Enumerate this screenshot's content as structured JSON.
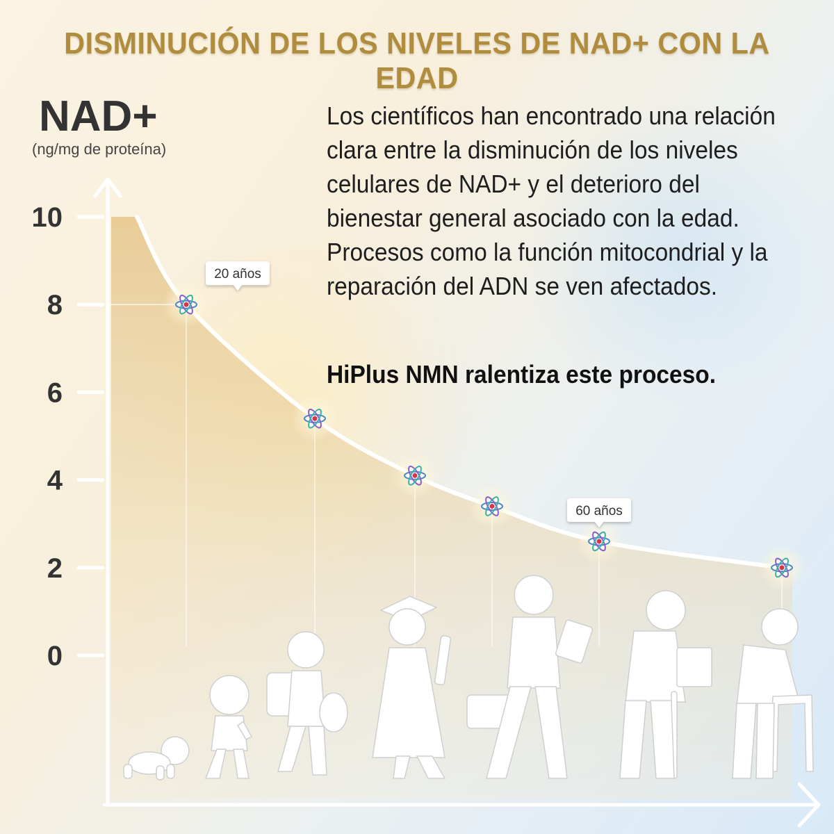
{
  "title": "DISMINUCIÓN DE LOS NIVELES DE NAD+ CON LA EDAD",
  "description": "Los científicos han encontrado una relación clara entre la disminución de los niveles celulares de NAD+ y el deterioro del bienestar general asociado con la edad. Procesos como la función mitocondrial y la reparación del ADN se ven afectados.",
  "highlight": "HiPlus NMN ralentiza este proceso.",
  "colors": {
    "title": "#b08d3e",
    "fill": "#e6c98f",
    "curve": "#ffffff"
  },
  "icons": [
    "atom-icon",
    "crawling-baby-icon",
    "toddler-icon",
    "child-with-backpack-icon",
    "graduate-icon",
    "businessman-icon",
    "elderly-man-with-cane-icon",
    "elderly-man-with-walker-icon"
  ],
  "chart_data": {
    "type": "area",
    "ylabel": "NAD+",
    "yunit": "(ng/mg de proteína)",
    "ylim": [
      0,
      10
    ],
    "yticks": [
      0,
      2,
      4,
      6,
      8,
      10
    ],
    "grid": false,
    "series": [
      {
        "values": [
          10,
          8.0,
          5.4,
          4.1,
          3.4,
          2.6,
          2.0
        ]
      }
    ],
    "annotations": [
      {
        "label": "20 años",
        "point": 1
      },
      {
        "label": "60 años",
        "point": 5
      }
    ]
  }
}
